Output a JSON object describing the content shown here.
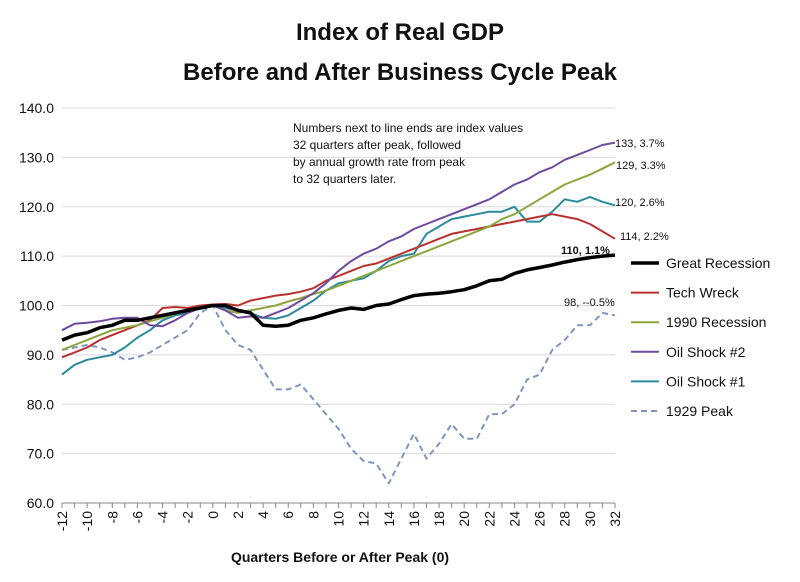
{
  "chart_data": {
    "type": "line",
    "title_line1": "Index of Real GDP",
    "title_line2": "Before and After Business Cycle Peak",
    "xlabel": "Quarters Before or After Peak (0)",
    "ylabel": "",
    "ylim": [
      60,
      140
    ],
    "xlim": [
      -12,
      32
    ],
    "y_ticks": [
      "60.0",
      "70.0",
      "80.0",
      "90.0",
      "100.0",
      "110.0",
      "120.0",
      "130.0",
      "140.0"
    ],
    "x_ticks": [
      "-12",
      "-10",
      "-8",
      "-6",
      "-4",
      "-2",
      "0",
      "2",
      "4",
      "6",
      "8",
      "10",
      "12",
      "14",
      "16",
      "18",
      "20",
      "22",
      "24",
      "26",
      "28",
      "30",
      "32"
    ],
    "grid": "horizontal",
    "legend_position": "right",
    "note": [
      "Numbers next to line ends are index values",
      "32 quarters after peak, followed",
      "by annual growth rate from peak",
      "to 32 quarters later."
    ],
    "series": [
      {
        "name": "Great Recession",
        "color": "#000000",
        "dash": "",
        "width": 3.5,
        "end_label": "110, 1.1%",
        "end_label_bold": true,
        "points": [
          [
            -12,
            93
          ],
          [
            -11,
            94
          ],
          [
            -10,
            94.5
          ],
          [
            -9,
            95.5
          ],
          [
            -8,
            96
          ],
          [
            -7,
            97
          ],
          [
            -6,
            97
          ],
          [
            -5,
            97.5
          ],
          [
            -4,
            98
          ],
          [
            -3,
            98.5
          ],
          [
            -2,
            99
          ],
          [
            -1,
            99.5
          ],
          [
            0,
            100
          ],
          [
            1,
            100
          ],
          [
            2,
            99
          ],
          [
            3,
            98.5
          ],
          [
            4,
            96
          ],
          [
            5,
            95.8
          ],
          [
            6,
            96
          ],
          [
            7,
            97
          ],
          [
            8,
            97.5
          ],
          [
            9,
            98.3
          ],
          [
            10,
            99
          ],
          [
            11,
            99.5
          ],
          [
            12,
            99.2
          ],
          [
            13,
            100
          ],
          [
            14,
            100.3
          ],
          [
            15,
            101.2
          ],
          [
            16,
            102
          ],
          [
            17,
            102.3
          ],
          [
            18,
            102.5
          ],
          [
            19,
            102.8
          ],
          [
            20,
            103.2
          ],
          [
            21,
            104
          ],
          [
            22,
            105
          ],
          [
            23,
            105.3
          ],
          [
            24,
            106.5
          ],
          [
            25,
            107.2
          ],
          [
            26,
            107.7
          ],
          [
            27,
            108.2
          ],
          [
            28,
            108.8
          ],
          [
            29,
            109.3
          ],
          [
            30,
            109.7
          ],
          [
            31,
            110
          ],
          [
            32,
            110.2
          ]
        ]
      },
      {
        "name": "Tech Wreck",
        "color": "#b8312f",
        "dash": "",
        "width": 2,
        "end_label": "114, 2.2%",
        "end_label_bold": false,
        "points": [
          [
            -12,
            89.5
          ],
          [
            -11,
            90.5
          ],
          [
            -10,
            91.5
          ],
          [
            -9,
            93
          ],
          [
            -8,
            94
          ],
          [
            -7,
            95
          ],
          [
            -6,
            96
          ],
          [
            -5,
            97
          ],
          [
            -4,
            99.5
          ],
          [
            -3,
            99.7
          ],
          [
            -2,
            99.5
          ],
          [
            -1,
            100
          ],
          [
            0,
            100.2
          ],
          [
            1,
            100.3
          ],
          [
            2,
            100
          ],
          [
            3,
            101
          ],
          [
            4,
            101.5
          ],
          [
            5,
            102
          ],
          [
            6,
            102.3
          ],
          [
            7,
            102.8
          ],
          [
            8,
            103.5
          ],
          [
            9,
            105
          ],
          [
            10,
            106
          ],
          [
            11,
            107
          ],
          [
            12,
            108
          ],
          [
            13,
            108.5
          ],
          [
            14,
            109.5
          ],
          [
            15,
            110.5
          ],
          [
            16,
            111.5
          ],
          [
            17,
            112.5
          ],
          [
            18,
            113.5
          ],
          [
            19,
            114.5
          ],
          [
            20,
            115
          ],
          [
            21,
            115.5
          ],
          [
            22,
            116
          ],
          [
            23,
            116.5
          ],
          [
            24,
            117
          ],
          [
            25,
            117.5
          ],
          [
            26,
            118
          ],
          [
            27,
            118.5
          ],
          [
            28,
            118
          ],
          [
            29,
            117.5
          ],
          [
            30,
            116.5
          ],
          [
            31,
            115
          ],
          [
            32,
            113.5
          ]
        ]
      },
      {
        "name": "1990 Recession",
        "color": "#8aa63c",
        "dash": "",
        "width": 2,
        "end_label": "129, 3.3%",
        "end_label_bold": false,
        "points": [
          [
            -12,
            91
          ],
          [
            -11,
            92
          ],
          [
            -10,
            93
          ],
          [
            -9,
            94
          ],
          [
            -8,
            95
          ],
          [
            -7,
            95.5
          ],
          [
            -6,
            96
          ],
          [
            -5,
            96.8
          ],
          [
            -4,
            97.5
          ],
          [
            -3,
            98.3
          ],
          [
            -2,
            99
          ],
          [
            -1,
            99.7
          ],
          [
            0,
            100
          ],
          [
            1,
            99
          ],
          [
            2,
            98.5
          ],
          [
            3,
            99
          ],
          [
            4,
            99.5
          ],
          [
            5,
            100
          ],
          [
            6,
            100.8
          ],
          [
            7,
            101.5
          ],
          [
            8,
            102.3
          ],
          [
            9,
            103
          ],
          [
            10,
            104
          ],
          [
            11,
            105
          ],
          [
            12,
            106
          ],
          [
            13,
            107
          ],
          [
            14,
            108
          ],
          [
            15,
            109
          ],
          [
            16,
            110
          ],
          [
            17,
            111
          ],
          [
            18,
            112
          ],
          [
            19,
            113
          ],
          [
            20,
            114
          ],
          [
            21,
            115
          ],
          [
            22,
            116
          ],
          [
            23,
            117.5
          ],
          [
            24,
            118.5
          ],
          [
            25,
            120
          ],
          [
            26,
            121.5
          ],
          [
            27,
            123
          ],
          [
            28,
            124.5
          ],
          [
            29,
            125.5
          ],
          [
            30,
            126.5
          ],
          [
            31,
            127.7
          ],
          [
            32,
            129
          ]
        ]
      },
      {
        "name": "Oil Shock #2",
        "color": "#6e4a9e",
        "dash": "",
        "width": 2,
        "end_label": "133, 3.7%",
        "end_label_bold": false,
        "points": [
          [
            -12,
            95
          ],
          [
            -11,
            96.3
          ],
          [
            -10,
            96.5
          ],
          [
            -9,
            96.8
          ],
          [
            -8,
            97.3
          ],
          [
            -7,
            97.5
          ],
          [
            -6,
            97.5
          ],
          [
            -5,
            96
          ],
          [
            -4,
            95.8
          ],
          [
            -3,
            97
          ],
          [
            -2,
            98.5
          ],
          [
            -1,
            99.5
          ],
          [
            0,
            100
          ],
          [
            1,
            99
          ],
          [
            2,
            97.5
          ],
          [
            3,
            97.8
          ],
          [
            4,
            97.5
          ],
          [
            5,
            98.5
          ],
          [
            6,
            99.5
          ],
          [
            7,
            101
          ],
          [
            8,
            102.5
          ],
          [
            9,
            104.5
          ],
          [
            10,
            107
          ],
          [
            11,
            109
          ],
          [
            12,
            110.5
          ],
          [
            13,
            111.5
          ],
          [
            14,
            113
          ],
          [
            15,
            114
          ],
          [
            16,
            115.5
          ],
          [
            17,
            116.5
          ],
          [
            18,
            117.5
          ],
          [
            19,
            118.5
          ],
          [
            20,
            119.5
          ],
          [
            21,
            120.5
          ],
          [
            22,
            121.5
          ],
          [
            23,
            123
          ],
          [
            24,
            124.5
          ],
          [
            25,
            125.5
          ],
          [
            26,
            127
          ],
          [
            27,
            128
          ],
          [
            28,
            129.5
          ],
          [
            29,
            130.5
          ],
          [
            30,
            131.5
          ],
          [
            31,
            132.5
          ],
          [
            32,
            133
          ]
        ]
      },
      {
        "name": "Oil Shock #1",
        "color": "#2b8a9c",
        "dash": "",
        "width": 2,
        "end_label": "120, 2.6%",
        "end_label_bold": false,
        "points": [
          [
            -12,
            86
          ],
          [
            -11,
            88
          ],
          [
            -10,
            89
          ],
          [
            -9,
            89.5
          ],
          [
            -8,
            90
          ],
          [
            -7,
            91.5
          ],
          [
            -6,
            93.5
          ],
          [
            -5,
            95
          ],
          [
            -4,
            97
          ],
          [
            -3,
            98
          ],
          [
            -2,
            98.5
          ],
          [
            -1,
            99.5
          ],
          [
            0,
            100
          ],
          [
            1,
            99.5
          ],
          [
            2,
            99
          ],
          [
            3,
            98.5
          ],
          [
            4,
            97.5
          ],
          [
            5,
            97.3
          ],
          [
            6,
            98
          ],
          [
            7,
            99.5
          ],
          [
            8,
            101
          ],
          [
            9,
            103
          ],
          [
            10,
            104.5
          ],
          [
            11,
            105
          ],
          [
            12,
            105.5
          ],
          [
            13,
            107
          ],
          [
            14,
            109
          ],
          [
            15,
            110
          ],
          [
            16,
            110.5
          ],
          [
            17,
            114.5
          ],
          [
            18,
            116
          ],
          [
            19,
            117.5
          ],
          [
            20,
            118
          ],
          [
            21,
            118.5
          ],
          [
            22,
            119
          ],
          [
            23,
            119
          ],
          [
            24,
            120
          ],
          [
            25,
            117
          ],
          [
            26,
            117
          ],
          [
            27,
            119
          ],
          [
            28,
            121.5
          ],
          [
            29,
            121
          ],
          [
            30,
            122
          ],
          [
            31,
            121
          ],
          [
            32,
            120.3
          ]
        ]
      },
      {
        "name": "1929 Peak",
        "color": "#7f95bf",
        "dash": "6,4",
        "width": 2,
        "end_label": "98, --0.5%",
        "end_label_bold": false,
        "points": [
          [
            -12,
            91
          ],
          [
            -11,
            91.5
          ],
          [
            -10,
            92
          ],
          [
            -9,
            91.5
          ],
          [
            -8,
            90.5
          ],
          [
            -7,
            89
          ],
          [
            -6,
            89.5
          ],
          [
            -5,
            90.5
          ],
          [
            -4,
            92
          ],
          [
            -3,
            93.5
          ],
          [
            -2,
            95
          ],
          [
            -1,
            98.5
          ],
          [
            0,
            100
          ],
          [
            1,
            95
          ],
          [
            2,
            92
          ],
          [
            3,
            91
          ],
          [
            4,
            87
          ],
          [
            5,
            83
          ],
          [
            6,
            83
          ],
          [
            7,
            84
          ],
          [
            8,
            81
          ],
          [
            9,
            78
          ],
          [
            10,
            75
          ],
          [
            11,
            71
          ],
          [
            12,
            68.5
          ],
          [
            13,
            68
          ],
          [
            14,
            64
          ],
          [
            15,
            69
          ],
          [
            16,
            74
          ],
          [
            17,
            69
          ],
          [
            18,
            72
          ],
          [
            19,
            76
          ],
          [
            20,
            73
          ],
          [
            21,
            73
          ],
          [
            22,
            78
          ],
          [
            23,
            78
          ],
          [
            24,
            80
          ],
          [
            25,
            85
          ],
          [
            26,
            86
          ],
          [
            27,
            91
          ],
          [
            28,
            93
          ],
          [
            29,
            96
          ],
          [
            30,
            96
          ],
          [
            31,
            98.5
          ],
          [
            32,
            98
          ]
        ]
      }
    ]
  }
}
